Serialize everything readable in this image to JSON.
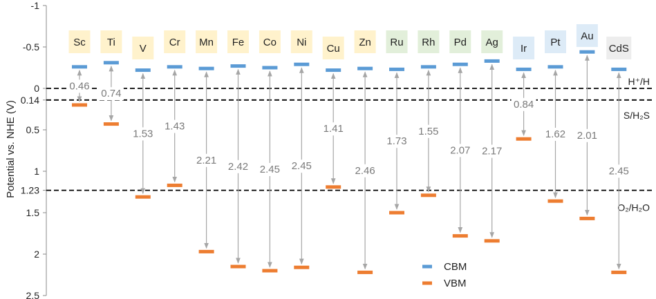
{
  "chart_data": {
    "type": "scatter",
    "title": "",
    "xlabel": "",
    "ylabel": "Potential vs. NHE (V)",
    "ylim": [
      -1,
      2.5
    ],
    "y_ticks": [
      "-1",
      "-0.5",
      "0",
      "0.14",
      "0.5",
      "1",
      "1.23",
      "1.5",
      "2",
      "2.5"
    ],
    "y_tick_values": [
      -1,
      -0.5,
      0,
      0.14,
      0.5,
      1,
      1.23,
      1.5,
      2,
      2.5
    ],
    "categories": [
      "Sc",
      "Ti",
      "V",
      "Cr",
      "Mn",
      "Fe",
      "Co",
      "Ni",
      "Cu",
      "Zn",
      "Ru",
      "Rh",
      "Pd",
      "Ag",
      "Ir",
      "Pt",
      "Au",
      "CdS"
    ],
    "label_colors": [
      "#FFF2CC",
      "#FFF2CC",
      "#FFF2CC",
      "#FFF2CC",
      "#FFF2CC",
      "#FFF2CC",
      "#FFF2CC",
      "#FFF2CC",
      "#FFF2CC",
      "#FFF2CC",
      "#E2EFDA",
      "#E2EFDA",
      "#E2EFDA",
      "#E2EFDA",
      "#DDEBF7",
      "#DDEBF7",
      "#DDEBF7",
      "#EDEDED"
    ],
    "label_offsets": [
      0,
      0,
      1,
      0,
      0,
      0,
      0,
      0,
      1,
      0,
      0,
      0,
      0,
      0,
      1,
      0,
      -1,
      1
    ],
    "series": [
      {
        "name": "CBM",
        "color": "#5B9BD5",
        "values": [
          -0.26,
          -0.31,
          -0.22,
          -0.26,
          -0.24,
          -0.27,
          -0.25,
          -0.29,
          -0.22,
          -0.24,
          -0.23,
          -0.26,
          -0.29,
          -0.33,
          -0.23,
          -0.26,
          -0.44,
          -0.23
        ]
      },
      {
        "name": "VBM",
        "color": "#ED7D31",
        "values": [
          0.2,
          0.43,
          1.31,
          1.17,
          1.97,
          2.15,
          2.2,
          2.16,
          1.19,
          2.22,
          1.5,
          1.29,
          1.78,
          1.84,
          0.61,
          1.36,
          1.57,
          2.22
        ]
      }
    ],
    "gap_labels": [
      "0.46",
      "0.74",
      "1.53",
      "1.43",
      "2.21",
      "2.42",
      "2.45",
      "2.45",
      "1.41",
      "2.46",
      "1.73",
      "1.55",
      "2.07",
      "2.17",
      "0.84",
      "1.62",
      "2.01",
      "2.45"
    ],
    "reference_lines": [
      {
        "y": 0,
        "label": "H⁺/H"
      },
      {
        "y": 0.14,
        "label": "S/H₂S"
      },
      {
        "y": 1.23,
        "label": "O₂/H₂O"
      }
    ],
    "legend": {
      "position": "bottom-center",
      "entries": [
        "CBM",
        "VBM"
      ]
    }
  }
}
